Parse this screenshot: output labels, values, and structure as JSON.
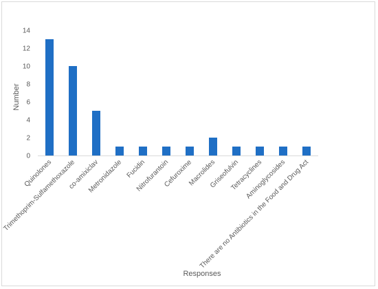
{
  "chart_data": {
    "type": "bar",
    "title": "",
    "xlabel": "Responses",
    "ylabel": "Number",
    "ylim": [
      0,
      14
    ],
    "yticks": [
      0,
      2,
      4,
      6,
      8,
      10,
      12,
      14
    ],
    "grid": false,
    "legend": "none",
    "bar_color": "#1f6fc5",
    "categories": [
      "Quinolones",
      "Trimethoprim-Sulfamethoxazole",
      "co-amixiclav",
      "Metronidazole",
      "Fucidin",
      "Nitrofurantoin",
      "Cefuroxime",
      "Macrolides",
      "Griseofulvin",
      "Tetracyclines",
      "Aminoglycosides",
      "There are no Antibiotics in the Food and Drug Act"
    ],
    "values": [
      13,
      10,
      5,
      1,
      1,
      1,
      1,
      2,
      1,
      1,
      1,
      1
    ]
  }
}
